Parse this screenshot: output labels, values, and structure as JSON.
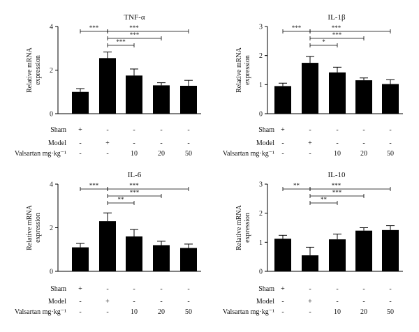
{
  "colors": {
    "bar": "#000000",
    "axis": "#000000",
    "background": "#ffffff"
  },
  "row_labels": {
    "sham": "Sham",
    "model": "Model",
    "valsartan": "Valsartan mg·kg⁻¹"
  },
  "chart_data": [
    {
      "type": "bar",
      "title": "TNF-α",
      "ylabel": "Relative mRNA expression",
      "ylim": [
        0,
        4
      ],
      "yticks": [
        "0",
        "2",
        "4"
      ],
      "categories": [
        "Sham",
        "Model",
        "10",
        "20",
        "50"
      ],
      "values": [
        1.0,
        2.55,
        1.75,
        1.3,
        1.28
      ],
      "errors": [
        0.15,
        0.28,
        0.3,
        0.12,
        0.25
      ],
      "treatment_rows": {
        "sham": [
          "+",
          "-",
          "-",
          "-",
          "-"
        ],
        "model": [
          "-",
          "+",
          "-",
          "-",
          "-"
        ],
        "valsartan": [
          "-",
          "-",
          "10",
          "20",
          "50"
        ]
      },
      "significance": [
        {
          "from": 0,
          "to": 1,
          "label": "***"
        },
        {
          "from": 1,
          "to": 4,
          "label": "***"
        },
        {
          "from": 1,
          "to": 3,
          "label": "***"
        },
        {
          "from": 1,
          "to": 2,
          "label": "***"
        }
      ]
    },
    {
      "type": "bar",
      "title": "IL-1β",
      "ylabel": "Relative mRNA expression",
      "ylim": [
        0,
        3
      ],
      "yticks": [
        "0",
        "1",
        "2",
        "3"
      ],
      "categories": [
        "Sham",
        "Model",
        "10",
        "20",
        "50"
      ],
      "values": [
        0.95,
        1.75,
        1.42,
        1.15,
        1.02
      ],
      "errors": [
        0.1,
        0.22,
        0.18,
        0.08,
        0.15
      ],
      "treatment_rows": {
        "sham": [
          "+",
          "-",
          "-",
          "-",
          "-"
        ],
        "model": [
          "-",
          "+",
          "-",
          "-",
          "-"
        ],
        "valsartan": [
          "-",
          "-",
          "10",
          "20",
          "50"
        ]
      },
      "significance": [
        {
          "from": 0,
          "to": 1,
          "label": "***"
        },
        {
          "from": 1,
          "to": 4,
          "label": "***"
        },
        {
          "from": 1,
          "to": 3,
          "label": "***"
        },
        {
          "from": 1,
          "to": 2,
          "label": "*"
        }
      ]
    },
    {
      "type": "bar",
      "title": "IL-6",
      "ylabel": "Relative mRNA expression",
      "ylim": [
        0,
        4
      ],
      "yticks": [
        "0",
        "2",
        "4"
      ],
      "categories": [
        "Sham",
        "Model",
        "10",
        "20",
        "50"
      ],
      "values": [
        1.1,
        2.3,
        1.6,
        1.2,
        1.07
      ],
      "errors": [
        0.18,
        0.38,
        0.32,
        0.18,
        0.18
      ],
      "treatment_rows": {
        "sham": [
          "+",
          "-",
          "-",
          "-",
          "-"
        ],
        "model": [
          "-",
          "+",
          "-",
          "-",
          "-"
        ],
        "valsartan": [
          "-",
          "-",
          "10",
          "20",
          "50"
        ]
      },
      "significance": [
        {
          "from": 0,
          "to": 1,
          "label": "***"
        },
        {
          "from": 1,
          "to": 4,
          "label": "***"
        },
        {
          "from": 1,
          "to": 3,
          "label": "***"
        },
        {
          "from": 1,
          "to": 2,
          "label": "**"
        }
      ]
    },
    {
      "type": "bar",
      "title": "IL-10",
      "ylabel": "Relative mRNA expression",
      "ylim": [
        0,
        3
      ],
      "yticks": [
        "0",
        "1",
        "2",
        "3"
      ],
      "categories": [
        "Sham",
        "Model",
        "10",
        "20",
        "50"
      ],
      "values": [
        1.12,
        0.55,
        1.1,
        1.4,
        1.42
      ],
      "errors": [
        0.12,
        0.28,
        0.18,
        0.1,
        0.15
      ],
      "treatment_rows": {
        "sham": [
          "+",
          "-",
          "-",
          "-",
          "-"
        ],
        "model": [
          "-",
          "+",
          "-",
          "-",
          "-"
        ],
        "valsartan": [
          "-",
          "-",
          "10",
          "20",
          "50"
        ]
      },
      "significance": [
        {
          "from": 0,
          "to": 1,
          "label": "**"
        },
        {
          "from": 1,
          "to": 4,
          "label": "***"
        },
        {
          "from": 1,
          "to": 3,
          "label": "***"
        },
        {
          "from": 1,
          "to": 2,
          "label": "**"
        }
      ]
    }
  ]
}
